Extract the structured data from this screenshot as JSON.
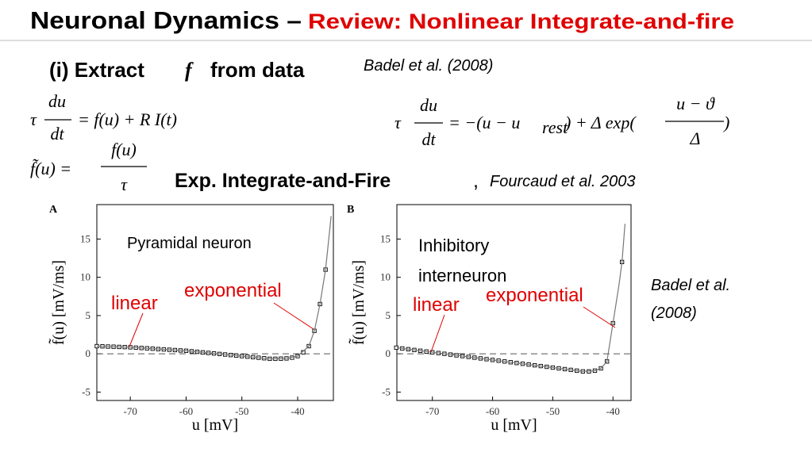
{
  "slide": {
    "title": "Neuronal Dynamics –",
    "subtitle": "Review: Nonlinear Integrate-and-fire",
    "heading_1": "(i) Extract",
    "heading_1_var": "f",
    "heading_1_end": "from data",
    "citation_1": "Badel et al. (2008)",
    "equation_1": {
      "tau": "τ",
      "num": "du",
      "den": "dt",
      "rhs": "= f(u) + R I(t)"
    },
    "equation_2": {
      "lhs": "f̃(u) =",
      "num": "f(u)",
      "den": "τ"
    },
    "equation_3": {
      "tau": "τ",
      "num": "du",
      "den": "dt",
      "rhs_1": "= −(u − u",
      "sub": "rest",
      "rhs_2": ") + Δ exp(",
      "num2": "u − ϑ",
      "den2": "Δ",
      "rhs_3": ")"
    },
    "heading_2": "Exp. Integrate-and-Fire",
    "heading_2_sep": ",",
    "citation_2": "Fourcaud et al. 2003",
    "citation_3_lines": [
      "Badel et al.",
      "(2008)"
    ]
  },
  "chart_data": [
    {
      "type": "scatter",
      "panel": "A",
      "x_label": "u [mV]",
      "y_label": "f̃(u) [mV/ms]",
      "xlim": [
        -76,
        -33.6
      ],
      "ylim": [
        -6.1,
        19.5
      ],
      "xticks": [
        -70,
        -60,
        -50,
        -40
      ],
      "yticks": [
        -5,
        0,
        5,
        10,
        15
      ],
      "reference_line": 0,
      "annotations": [
        "Pyramidal neuron",
        "exponential",
        "linear"
      ],
      "series": [
        {
          "kind": "markers",
          "color": "#000000",
          "x": [
            -76,
            -75,
            -74,
            -73,
            -72,
            -71,
            -70,
            -69,
            -68,
            -67,
            -66,
            -65,
            -64,
            -63,
            -62,
            -61,
            -60,
            -59,
            -58,
            -57,
            -56,
            -55,
            -54,
            -53,
            -52,
            -51,
            -50,
            -49,
            -48,
            -47,
            -46,
            -45,
            -44,
            -43,
            -42,
            -41,
            -40,
            -39,
            -38,
            -37,
            -36,
            -35
          ],
          "values": [
            1.0,
            0.98,
            0.95,
            0.93,
            0.9,
            0.88,
            0.85,
            0.8,
            0.76,
            0.72,
            0.67,
            0.62,
            0.58,
            0.53,
            0.49,
            0.44,
            0.4,
            0.33,
            0.26,
            0.19,
            0.12,
            0.05,
            -0.02,
            -0.09,
            -0.16,
            -0.23,
            -0.3,
            -0.37,
            -0.44,
            -0.51,
            -0.58,
            -0.65,
            -0.65,
            -0.63,
            -0.6,
            -0.5,
            -0.3,
            0.2,
            1.0,
            3.0,
            6.5,
            11
          ]
        },
        {
          "kind": "line",
          "color": "#777777",
          "x": [
            -76,
            -70,
            -60,
            -50,
            -45,
            -42,
            -40,
            -38,
            -37,
            -36,
            -35,
            -34
          ],
          "values": [
            1.0,
            0.85,
            0.4,
            -0.3,
            -0.65,
            -0.6,
            -0.3,
            1.0,
            3.0,
            6.5,
            11,
            18
          ]
        }
      ]
    },
    {
      "type": "scatter",
      "panel": "B",
      "x_label": "u [mV]",
      "y_label": "f̃(u) [mV/ms]",
      "xlim": [
        -75.9,
        -37
      ],
      "ylim": [
        -6.1,
        19.5
      ],
      "xticks": [
        -70,
        -60,
        -50,
        -40
      ],
      "yticks": [
        -5,
        0,
        5,
        10,
        15
      ],
      "reference_line": 0,
      "annotations": [
        "Inhibitory",
        "interneuron",
        "exponential",
        "linear"
      ],
      "series": [
        {
          "kind": "markers",
          "color": "#000000",
          "x": [
            -76,
            -75,
            -74,
            -73,
            -72,
            -71,
            -70,
            -69,
            -68,
            -67,
            -66,
            -65,
            -64,
            -63,
            -62,
            -61,
            -60,
            -59,
            -58,
            -57,
            -56,
            -55,
            -54,
            -53,
            -52,
            -51,
            -50,
            -49,
            -48,
            -47,
            -46,
            -45,
            -44,
            -43,
            -42,
            -41,
            -40,
            -38.5
          ],
          "values": [
            0.8,
            0.7,
            0.6,
            0.5,
            0.4,
            0.3,
            0.2,
            0.1,
            0.0,
            -0.1,
            -0.2,
            -0.3,
            -0.4,
            -0.5,
            -0.6,
            -0.7,
            -0.8,
            -0.9,
            -1.0,
            -1.1,
            -1.2,
            -1.3,
            -1.4,
            -1.5,
            -1.6,
            -1.7,
            -1.8,
            -1.9,
            -2.0,
            -2.1,
            -2.2,
            -2.3,
            -2.3,
            -2.2,
            -1.9,
            -1.0,
            4.0,
            12.0
          ]
        },
        {
          "kind": "line",
          "color": "#777777",
          "x": [
            -76,
            -70,
            -60,
            -50,
            -45,
            -43,
            -42,
            -41,
            -40,
            -39,
            -38.5,
            -38
          ],
          "values": [
            0.8,
            0.2,
            -0.8,
            -1.8,
            -2.3,
            -2.2,
            -1.9,
            -1.0,
            4.0,
            9.0,
            12.0,
            17
          ]
        }
      ]
    }
  ]
}
